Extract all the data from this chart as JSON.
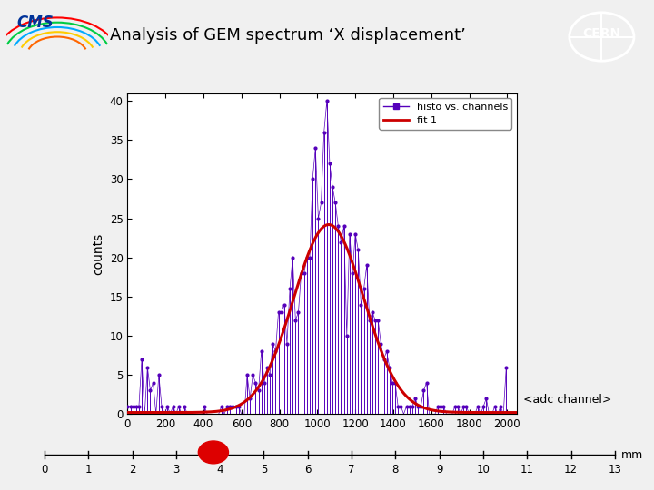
{
  "title": "Analysis of GEM spectrum ‘X displacement’",
  "ylabel": "counts",
  "xlabel_adc": "<adc channel>",
  "xlabel_mm": "mm",
  "xlim": [
    0,
    2050
  ],
  "ylim": [
    0,
    41
  ],
  "yticks": [
    0,
    5,
    10,
    15,
    20,
    25,
    30,
    35,
    40
  ],
  "xticks": [
    0,
    200,
    400,
    600,
    800,
    1000,
    1200,
    1400,
    1600,
    1800,
    2000
  ],
  "mm_ticks": [
    0,
    1,
    2,
    3,
    4,
    5,
    6,
    7,
    8,
    9,
    10,
    11,
    12,
    13
  ],
  "hist_color": "#5500bb",
  "fit_color": "#cc0000",
  "legend_hist": "histo vs. channels",
  "legend_fit": "fit 1",
  "fit_mean": 1060,
  "fit_sigma": 185,
  "fit_amplitude": 24.0,
  "fit_baseline": 0.2,
  "background_color": "#f0f0f0",
  "plot_bg": "#ffffff",
  "dot_color": "#dd0000",
  "dot_x_mm": 3.85,
  "cms_bg": "#ffffff",
  "cern_bg": "#4466aa"
}
